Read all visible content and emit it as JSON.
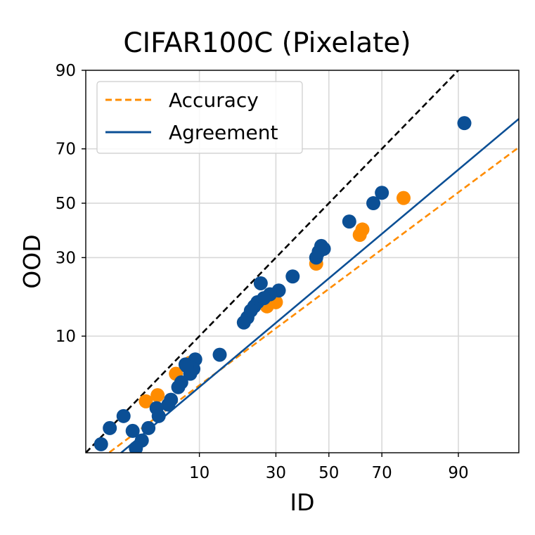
{
  "chart_data": {
    "type": "scatter",
    "title": "CIFAR100C (Pixelate)",
    "xlabel": "ID",
    "ylabel": "OOD",
    "axis_scale": "probit",
    "xlim": [
      0.8,
      97.0
    ],
    "ylim": [
      0.8,
      90.0
    ],
    "x_ticks": [
      10,
      30,
      50,
      70,
      90
    ],
    "y_ticks": [
      10,
      30,
      50,
      70,
      90
    ],
    "x_tick_labels": [
      "10",
      "30",
      "50",
      "70",
      "90"
    ],
    "y_tick_labels": [
      "10",
      "30",
      "50",
      "70",
      "90"
    ],
    "grid": true,
    "legend_position": "top-left",
    "legend": [
      {
        "label": "Accuracy",
        "style": "dashed",
        "color": "#ff8c00"
      },
      {
        "label": "Agreement",
        "style": "solid",
        "color": "#0b4f95"
      }
    ],
    "reference_line": {
      "style": "dashed",
      "color": "#000000",
      "points": [
        [
          0.8,
          0.8
        ],
        [
          90,
          90
        ]
      ]
    },
    "fit_lines": [
      {
        "name": "Accuracy",
        "color": "#ff8c00",
        "style": "dashed",
        "points": [
          [
            0.8,
            0.5
          ],
          [
            97,
            70.5
          ]
        ]
      },
      {
        "name": "Agreement",
        "color": "#0b4f95",
        "style": "solid",
        "points": [
          [
            0.8,
            0.35
          ],
          [
            97,
            79.2
          ]
        ]
      }
    ],
    "series": [
      {
        "name": "Accuracy",
        "color": "#ff8c00",
        "points": [
          [
            77,
            52
          ],
          [
            63,
            40
          ],
          [
            62,
            38
          ],
          [
            45,
            28
          ],
          [
            30,
            17
          ],
          [
            27,
            16
          ],
          [
            8.5,
            6.2
          ],
          [
            6.5,
            5.0
          ],
          [
            4.5,
            3.2
          ],
          [
            3.5,
            2.8
          ]
        ]
      },
      {
        "name": "Agreement",
        "color": "#0b4f95",
        "points": [
          [
            91,
            78
          ],
          [
            70,
            54
          ],
          [
            67,
            50
          ],
          [
            58,
            43
          ],
          [
            47,
            34
          ],
          [
            45,
            30
          ],
          [
            46,
            32
          ],
          [
            48,
            33
          ],
          [
            36,
            24
          ],
          [
            31,
            20
          ],
          [
            28,
            19
          ],
          [
            25,
            22
          ],
          [
            24,
            17
          ],
          [
            23,
            16
          ],
          [
            21,
            13.5
          ],
          [
            20,
            12.5
          ],
          [
            22,
            15
          ],
          [
            26,
            18
          ],
          [
            14,
            7.2
          ],
          [
            9.3,
            6.6
          ],
          [
            9.0,
            5.5
          ],
          [
            8.5,
            5.0
          ],
          [
            7.2,
            4.2
          ],
          [
            6.8,
            3.8
          ],
          [
            5.9,
            2.9
          ],
          [
            5.6,
            2.6
          ],
          [
            4.4,
            2.4
          ],
          [
            4.6,
            2.0
          ],
          [
            3.7,
            1.5
          ],
          [
            3.2,
            1.1
          ],
          [
            2.6,
            1.4
          ],
          [
            2.1,
            2.0
          ],
          [
            1.5,
            1.5
          ],
          [
            1.2,
            1.0
          ],
          [
            1.6,
            0.55
          ],
          [
            2.8,
            0.9
          ],
          [
            7.8,
            6.0
          ],
          [
            8.0,
            5.8
          ]
        ]
      }
    ]
  }
}
